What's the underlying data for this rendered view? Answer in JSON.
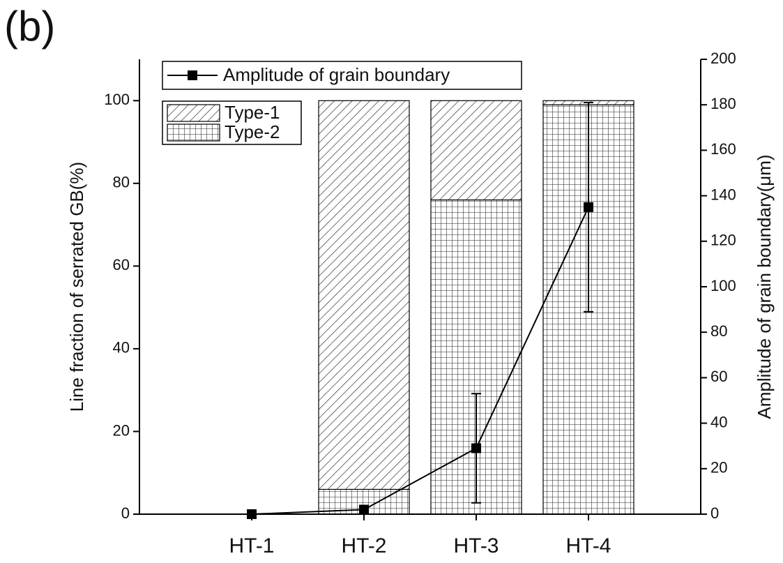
{
  "chart_data": {
    "type": "bar",
    "stacked": true,
    "panel_label": "(b)",
    "ylabel": "Line fraction of serrated GB(%)",
    "y2label": "Amplitude of grain boundary(μm)",
    "categories": [
      "HT-1",
      "HT-2",
      "HT-3",
      "HT-4"
    ],
    "series": [
      {
        "name": "Type-2",
        "color": "#000000",
        "hatch": "grid",
        "values": [
          0,
          6,
          76,
          99
        ]
      },
      {
        "name": "Type-1",
        "color": "#000000",
        "hatch": "diagonal",
        "values": [
          0,
          94,
          24,
          1
        ]
      },
      {
        "name": "Amplitude of grain boundary",
        "type": "line",
        "axis": "y2",
        "color": "#000000",
        "values": [
          0,
          2,
          29,
          135
        ],
        "errors": [
          null,
          null,
          24,
          46
        ]
      }
    ],
    "ylim": [
      0,
      110
    ],
    "yticks": [
      0,
      20,
      40,
      60,
      80,
      100
    ],
    "y2lim": [
      0,
      200
    ],
    "y2ticks": [
      0,
      20,
      40,
      60,
      80,
      100,
      120,
      140,
      160,
      180,
      200
    ]
  }
}
